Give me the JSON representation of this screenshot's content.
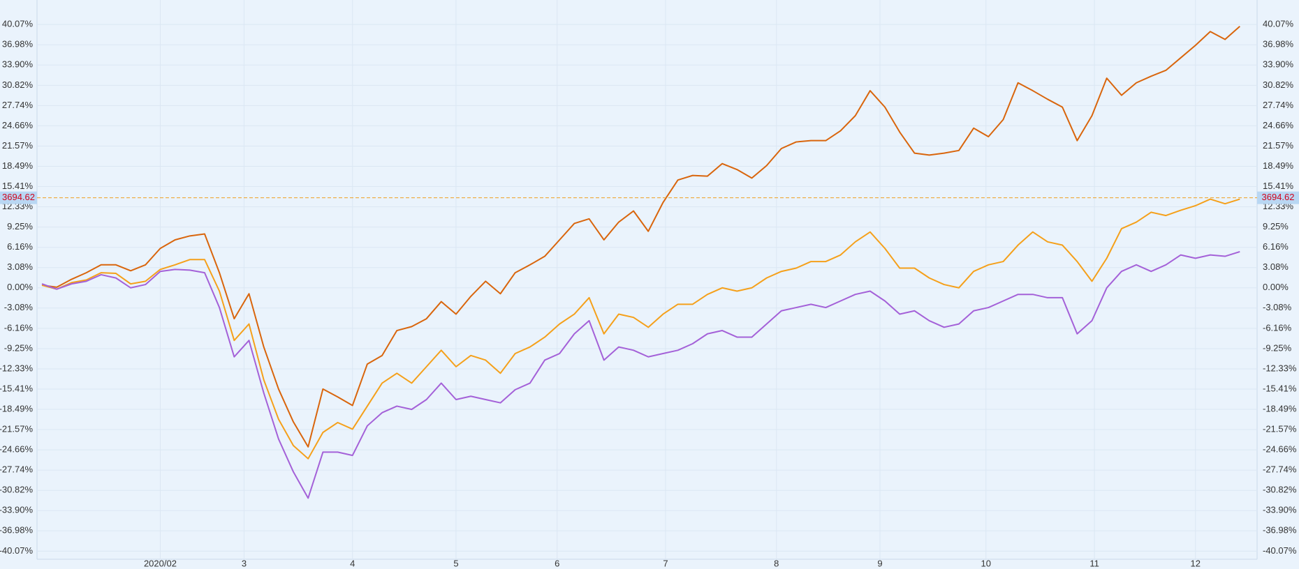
{
  "chart_data": {
    "type": "line",
    "x": [
      0,
      3,
      6,
      9,
      12,
      15,
      18,
      21,
      24,
      27,
      30,
      33,
      36,
      39,
      42,
      45,
      48,
      51,
      54,
      57,
      60,
      63,
      66,
      69,
      72,
      75,
      78,
      81,
      84,
      87,
      90,
      93,
      96,
      99,
      102,
      105,
      108,
      111,
      114,
      117,
      120,
      123,
      126,
      129,
      132,
      135,
      138,
      141,
      144,
      147,
      150,
      153,
      156,
      159,
      162,
      165,
      168,
      171,
      174,
      177,
      180,
      183,
      186,
      189,
      192,
      195,
      198,
      201,
      204,
      207,
      210,
      213,
      216,
      219,
      222,
      225,
      228,
      231,
      234,
      237,
      240,
      243
    ],
    "series": [
      {
        "color": "#d9650c",
        "values": [
          0.4,
          0.1,
          1.3,
          2.3,
          3.5,
          3.5,
          2.6,
          3.5,
          6,
          7.3,
          7.9,
          8.2,
          2.3,
          -4.7,
          -0.9,
          -9,
          -15.4,
          -20.4,
          -24.2,
          -15.4,
          -16.6,
          -17.9,
          -11.6,
          -10.3,
          -6.5,
          -5.9,
          -4.7,
          -2.1,
          -4,
          -1.3,
          1,
          -0.9,
          2.3,
          3.5,
          4.8,
          7.3,
          9.8,
          10.5,
          7.3,
          10,
          11.7,
          8.6,
          13,
          16.4,
          17.1,
          17,
          18.9,
          18,
          16.7,
          18.6,
          21.2,
          22.2,
          22.4,
          22.4,
          23.9,
          26.2,
          30,
          27.5,
          23.7,
          20.5,
          20.2,
          20.5,
          20.9,
          24.3,
          23,
          25.6,
          31.2,
          30,
          28.7,
          27.5,
          22.4,
          26.2,
          31.9,
          29.3,
          31.2,
          32.2,
          33.1,
          35,
          36.9,
          39,
          37.8,
          39.8
        ]
      },
      {
        "color": "#f5a01a",
        "values": [
          0.4,
          -0.2,
          0.8,
          1.2,
          2.3,
          2.2,
          0.6,
          1,
          2.8,
          3.5,
          4.3,
          4.3,
          -0.5,
          -8,
          -5.5,
          -14,
          -20,
          -24,
          -26,
          -22,
          -20.5,
          -21.5,
          -18,
          -14.5,
          -13,
          -14.5,
          -12,
          -9.5,
          -12,
          -10.3,
          -11,
          -13,
          -10,
          -9,
          -7.5,
          -5.5,
          -4,
          -1.5,
          -7,
          -4,
          -4.5,
          -6,
          -4,
          -2.5,
          -2.5,
          -1,
          0,
          -0.5,
          0,
          1.5,
          2.5,
          3,
          4,
          4,
          5,
          7,
          8.5,
          6,
          3,
          3,
          1.5,
          0.5,
          0,
          2.5,
          3.5,
          4,
          6.5,
          8.5,
          7,
          6.5,
          4,
          1,
          4.5,
          9,
          10,
          11.5,
          11,
          11.8,
          12.5,
          13.5,
          12.8,
          13.5
        ]
      },
      {
        "color": "#a461d8",
        "values": [
          0.6,
          -0.2,
          0.6,
          1,
          2,
          1.5,
          0,
          0.5,
          2.5,
          2.8,
          2.7,
          2.3,
          -3,
          -10.5,
          -8,
          -16,
          -23,
          -28,
          -32,
          -25,
          -25,
          -25.5,
          -21,
          -19,
          -18,
          -18.5,
          -17,
          -14.5,
          -17,
          -16.5,
          -17,
          -17.5,
          -15.5,
          -14.5,
          -11,
          -10,
          -7,
          -5,
          -11,
          -9,
          -9.5,
          -10.5,
          -10,
          -9.5,
          -8.5,
          -7,
          -6.5,
          -7.5,
          -7.5,
          -5.5,
          -3.5,
          -3,
          -2.5,
          -3,
          -2,
          -1,
          -0.5,
          -2,
          -4,
          -3.5,
          -5,
          -6,
          -5.5,
          -3.5,
          -3,
          -2,
          -1,
          -1,
          -1.5,
          -1.5,
          -7,
          -5,
          0,
          2.5,
          3.5,
          2.5,
          3.5,
          5,
          4.5,
          5,
          4.8,
          5.5
        ]
      }
    ],
    "xlim": [
      -1,
      246.5
    ],
    "xticks": [
      {
        "value": 24,
        "label": "2020/02"
      },
      {
        "value": 41,
        "label": "3"
      },
      {
        "value": 63,
        "label": "4"
      },
      {
        "value": 84,
        "label": "5"
      },
      {
        "value": 104.5,
        "label": "6"
      },
      {
        "value": 126.5,
        "label": "7"
      },
      {
        "value": 149,
        "label": "8"
      },
      {
        "value": 170,
        "label": "9"
      },
      {
        "value": 191.5,
        "label": "10"
      },
      {
        "value": 213.5,
        "label": "11"
      },
      {
        "value": 234,
        "label": "12"
      }
    ],
    "ylim": [
      -41.3,
      43.8
    ],
    "yticks": [
      {
        "value": 40.07,
        "label": "40.07%"
      },
      {
        "value": 36.98,
        "label": "36.98%"
      },
      {
        "value": 33.9,
        "label": "33.90%"
      },
      {
        "value": 30.82,
        "label": "30.82%"
      },
      {
        "value": 27.74,
        "label": "27.74%"
      },
      {
        "value": 24.66,
        "label": "24.66%"
      },
      {
        "value": 21.57,
        "label": "21.57%"
      },
      {
        "value": 18.49,
        "label": "18.49%"
      },
      {
        "value": 15.41,
        "label": "15.41%"
      },
      {
        "value": 12.33,
        "label": "12.33%"
      },
      {
        "value": 9.25,
        "label": "9.25%"
      },
      {
        "value": 6.16,
        "label": "6.16%"
      },
      {
        "value": 3.08,
        "label": "3.08%"
      },
      {
        "value": 0,
        "label": "0.00%"
      },
      {
        "value": -3.08,
        "label": "-3.08%"
      },
      {
        "value": -6.16,
        "label": "-6.16%"
      },
      {
        "value": -9.25,
        "label": "-9.25%"
      },
      {
        "value": -12.33,
        "label": "-12.33%"
      },
      {
        "value": -15.41,
        "label": "-15.41%"
      },
      {
        "value": -18.49,
        "label": "-18.49%"
      },
      {
        "value": -21.57,
        "label": "-21.57%"
      },
      {
        "value": -24.66,
        "label": "-24.66%"
      },
      {
        "value": -27.74,
        "label": "-27.74%"
      },
      {
        "value": -30.82,
        "label": "-30.82%"
      },
      {
        "value": -33.9,
        "label": "-33.90%"
      },
      {
        "value": -36.98,
        "label": "-36.98%"
      },
      {
        "value": -40.07,
        "label": "-40.07%"
      }
    ],
    "grid": true,
    "crosshair": {
      "y": 13.7,
      "text": "3694.62",
      "color": "#f0a020"
    }
  }
}
